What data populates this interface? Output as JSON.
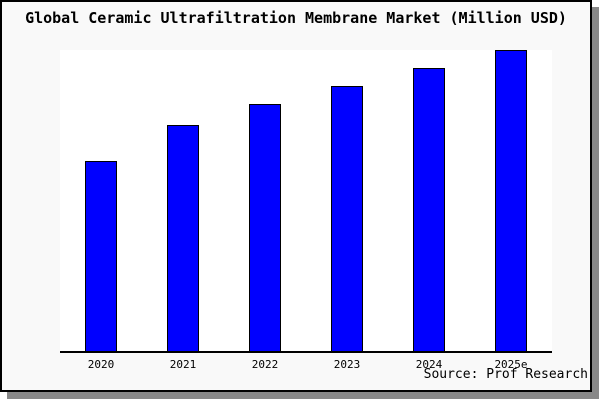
{
  "chart": {
    "title": "Global Ceramic Ultrafiltration Membrane Market (Million USD)",
    "source": "Source: Prof Research"
  },
  "colors": {
    "bar_fill": "#0000ff",
    "bar_edge": "#000000",
    "card_background": "#f9f9f9",
    "plot_background": "#ffffff",
    "frame": "#000000",
    "shadow": "#888888"
  },
  "chart_data": {
    "type": "bar",
    "title": "Global Ceramic Ultrafiltration Membrane Market (Million USD)",
    "categories": [
      "2020",
      "2021",
      "2022",
      "2023",
      "2024",
      "2025e"
    ],
    "values": [
      63,
      75,
      82,
      88,
      94,
      100
    ],
    "value_note": "y-axis has no ticks or labels in the chart; values are relative heights indexed to 2025e = 100",
    "xlabel": "",
    "ylabel": "",
    "ylim": [
      0,
      100
    ],
    "grid": false,
    "legend": false,
    "source": "Source: Prof Research"
  }
}
